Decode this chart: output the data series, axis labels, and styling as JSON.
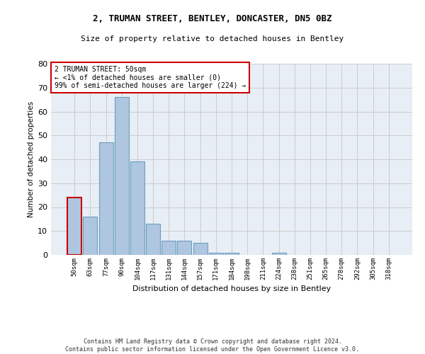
{
  "title1": "2, TRUMAN STREET, BENTLEY, DONCASTER, DN5 0BZ",
  "title2": "Size of property relative to detached houses in Bentley",
  "xlabel": "Distribution of detached houses by size in Bentley",
  "ylabel": "Number of detached properties",
  "categories": [
    "50sqm",
    "63sqm",
    "77sqm",
    "90sqm",
    "104sqm",
    "117sqm",
    "131sqm",
    "144sqm",
    "157sqm",
    "171sqm",
    "184sqm",
    "198sqm",
    "211sqm",
    "224sqm",
    "238sqm",
    "251sqm",
    "265sqm",
    "278sqm",
    "292sqm",
    "305sqm",
    "318sqm"
  ],
  "values": [
    24,
    16,
    47,
    66,
    39,
    13,
    6,
    6,
    5,
    1,
    1,
    0,
    0,
    1,
    0,
    0,
    0,
    0,
    0,
    0,
    0
  ],
  "bar_color": "#aec6df",
  "bar_edge_color": "#6a9fc0",
  "annotation_box_color": "#cc0000",
  "annotation_text": "2 TRUMAN STREET: 50sqm\n← <1% of detached houses are smaller (0)\n99% of semi-detached houses are larger (224) →",
  "ylim": [
    0,
    80
  ],
  "yticks": [
    0,
    10,
    20,
    30,
    40,
    50,
    60,
    70,
    80
  ],
  "grid_color": "#cccccc",
  "bg_color": "#e8eef5",
  "footer_line1": "Contains HM Land Registry data © Crown copyright and database right 2024.",
  "footer_line2": "Contains public sector information licensed under the Open Government Licence v3.0."
}
